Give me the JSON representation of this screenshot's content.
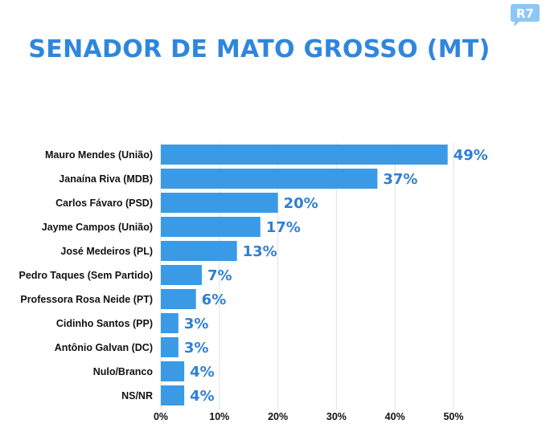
{
  "brand": {
    "logo_text": "R7",
    "logo_color": "#8ec7f5"
  },
  "colors": {
    "title": "#2f86dd",
    "bar": "#3a9ae6",
    "data_label": "#2f7fd4",
    "grid": "#e2e2e2"
  },
  "chart_data": {
    "type": "bar",
    "orientation": "horizontal",
    "title": "SENADOR DE MATO GROSSO (MT)",
    "categories": [
      "Mauro Mendes (União)",
      "Janaína Riva (MDB)",
      "Carlos Fávaro (PSD)",
      "Jayme Campos (União)",
      "José Medeiros (PL)",
      "Pedro Taques (Sem Partido)",
      "Professora Rosa Neide (PT)",
      "Cidinho Santos (PP)",
      "Antônio Galvan (DC)",
      "Nulo/Branco",
      "NS/NR"
    ],
    "values": [
      49,
      37,
      20,
      17,
      13,
      7,
      6,
      3,
      3,
      4,
      4
    ],
    "data_labels": [
      "49%",
      "37%",
      "20%",
      "17%",
      "13%",
      "7%",
      "6%",
      "3%",
      "3%",
      "4%",
      "4%"
    ],
    "xlim": [
      0,
      50
    ],
    "xticks": [
      0,
      10,
      20,
      30,
      40,
      50
    ],
    "xtick_labels": [
      "0%",
      "10%",
      "20%",
      "30%",
      "40%",
      "50%"
    ],
    "xlabel": "",
    "ylabel": "",
    "grid": true,
    "legend": "none"
  }
}
